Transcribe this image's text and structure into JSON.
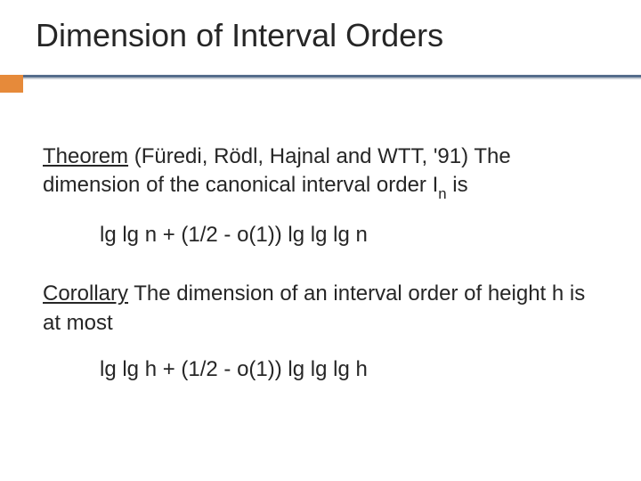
{
  "title": "Dimension of Interval Orders",
  "colors": {
    "rule_top": "#556d8c",
    "rule_bottom": "#c9cfd6",
    "accent": "#e68a3a",
    "text": "#262626",
    "background": "#ffffff"
  },
  "typography": {
    "title_fontsize": 36,
    "body_fontsize": 24,
    "font_family": "Comic Sans MS"
  },
  "theorem": {
    "label": "Theorem",
    "citation": " (Füredi, Rödl, Hajnal and WTT, '91) ",
    "stmt_a": "The dimension of the canonical interval order  ",
    "sym_I": "I",
    "sym_n": "n",
    "stmt_b": "  is",
    "formula": "lg lg n  +  (1/2  -  o(1)) lg lg lg n"
  },
  "corollary": {
    "label": "Corollary",
    "stmt": "  The dimension of an interval order of height  h  is at most",
    "formula": "lg lg h  +  (1/2  -  o(1)) lg lg lg h"
  }
}
